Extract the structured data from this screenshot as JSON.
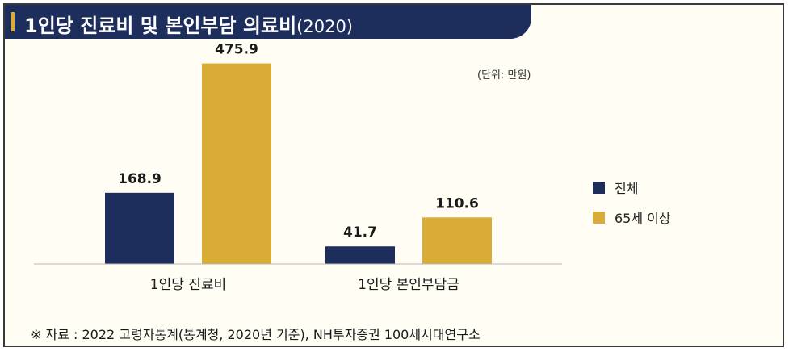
{
  "title": {
    "main": "1인당 진료비 및 본인부담 의료비",
    "year": "(2020)"
  },
  "unit": "(단위: 만원)",
  "colors": {
    "all": "#1d2e5c",
    "senior": "#d9ab37",
    "title_bg": "#1d2e5c"
  },
  "chart_data": {
    "type": "bar",
    "title": "1인당 진료비 및 본인부담 의료비(2020)",
    "categories": [
      "1인당 진료비",
      "1인당 본인부담금"
    ],
    "series": [
      {
        "name": "전체",
        "values": [
          168.9,
          41.7
        ],
        "labels": [
          "168.9",
          "41.7"
        ]
      },
      {
        "name": "65세 이상",
        "values": [
          475.9,
          110.6
        ],
        "labels": [
          "475.9",
          "110.6"
        ]
      }
    ],
    "ylim": [
      0,
      500
    ],
    "grid": false,
    "legend": "right"
  },
  "legend": [
    {
      "label": "전체"
    },
    {
      "label": "65세 이상"
    }
  ],
  "source": "※ 자료 : 2022 고령자통계(통계청, 2020년 기준), NH투자증권 100세시대연구소"
}
